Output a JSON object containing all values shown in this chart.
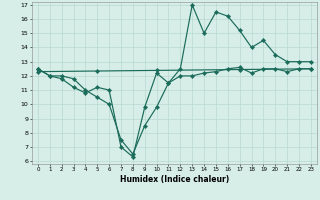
{
  "xlabel": "Humidex (Indice chaleur)",
  "xlim": [
    -0.5,
    23.5
  ],
  "ylim": [
    5.8,
    17.2
  ],
  "yticks": [
    6,
    7,
    8,
    9,
    10,
    11,
    12,
    13,
    14,
    15,
    16,
    17
  ],
  "xticks": [
    0,
    1,
    2,
    3,
    4,
    5,
    6,
    7,
    8,
    9,
    10,
    11,
    12,
    13,
    14,
    15,
    16,
    17,
    18,
    19,
    20,
    21,
    22,
    23
  ],
  "background_color": "#d6ede8",
  "grid_color": "#b8d8d0",
  "line_color": "#1a6b5a",
  "line1_x": [
    0,
    1,
    2,
    3,
    4,
    5,
    6,
    7,
    8,
    9,
    10,
    11,
    12,
    13,
    14,
    15,
    16,
    17,
    18,
    19,
    20,
    21,
    22,
    23
  ],
  "line1_y": [
    12.5,
    12.0,
    12.0,
    11.8,
    11.0,
    10.5,
    10.0,
    7.5,
    6.5,
    8.5,
    9.8,
    11.5,
    12.5,
    17.0,
    15.0,
    16.5,
    16.2,
    15.2,
    14.0,
    14.5,
    13.5,
    13.0,
    13.0,
    13.0
  ],
  "line1_markers": [
    0,
    1,
    2,
    3,
    4,
    5,
    6,
    7,
    8,
    9,
    10,
    11,
    12,
    13,
    14,
    15,
    16,
    17,
    18,
    19,
    20,
    21,
    22,
    23
  ],
  "line2_x": [
    0,
    1,
    2,
    3,
    4,
    5,
    6,
    7,
    8,
    9,
    10,
    11,
    12,
    13,
    14,
    15,
    16,
    17,
    18,
    19,
    20,
    21,
    22,
    23
  ],
  "line2_y": [
    12.5,
    12.0,
    11.8,
    11.2,
    10.8,
    11.2,
    11.0,
    7.0,
    6.3,
    9.8,
    12.2,
    11.5,
    12.0,
    12.0,
    12.2,
    12.3,
    12.5,
    12.6,
    12.2,
    12.5,
    12.5,
    12.3,
    12.5,
    12.5
  ],
  "line2_markers": [
    0,
    1,
    2,
    3,
    4,
    5,
    6,
    7,
    8,
    9,
    10,
    11,
    12,
    13,
    14,
    15,
    16,
    17,
    18,
    19,
    20,
    21,
    22,
    23
  ],
  "line3_x": [
    0,
    23
  ],
  "line3_y": [
    12.3,
    12.5
  ],
  "line3_markers": [
    0,
    5,
    10,
    17,
    23
  ]
}
